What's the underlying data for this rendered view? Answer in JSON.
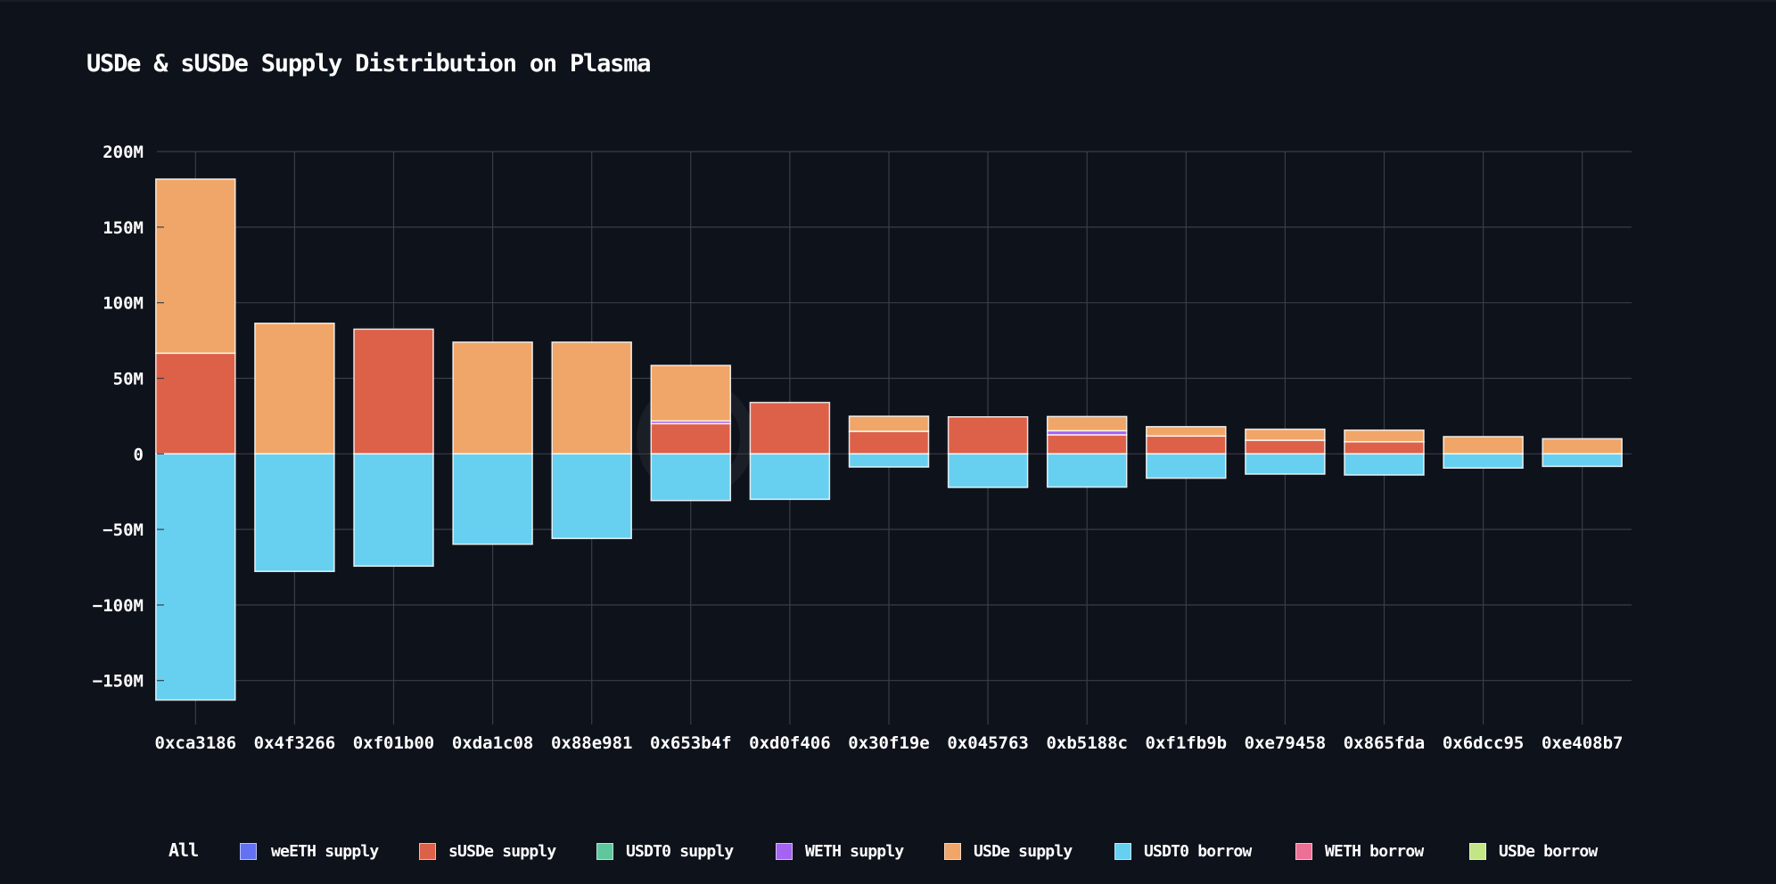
{
  "chart_data": {
    "type": "bar",
    "stacked": true,
    "title": "USDe & sUSDe Supply Distribution on Plasma",
    "xlabel": "",
    "ylabel": "",
    "ylim": [
      -170000000,
      200000000
    ],
    "yticks": [
      200000000,
      150000000,
      100000000,
      50000000,
      0,
      -50000000,
      -100000000,
      -150000000
    ],
    "ytick_labels": [
      "200M",
      "150M",
      "100M",
      "50M",
      "0",
      "−50M",
      "−100M",
      "−150M"
    ],
    "grid": true,
    "legend_position": "bottom",
    "categories": [
      "0xca3186",
      "0x4f3266",
      "0xf01b00",
      "0xda1c08",
      "0x88e981",
      "0x653b4f",
      "0xd0f406",
      "0x30f19e",
      "0x045763",
      "0xb5188c",
      "0xf1fb9b",
      "0xe79458",
      "0x865fda",
      "0x6dcc95",
      "0xe408b7"
    ],
    "series": [
      {
        "name": "weETH supply",
        "color": "#6372f4",
        "values": [
          0,
          0,
          0,
          0,
          0,
          0,
          0,
          0,
          0,
          0,
          0,
          0,
          0,
          0,
          0
        ]
      },
      {
        "name": "sUSDe supply",
        "color": "#dd6148",
        "values": [
          66600000,
          0,
          82500000,
          0,
          0,
          20000000,
          34000000,
          14900000,
          24500000,
          12600000,
          11800000,
          9000000,
          8000000,
          0,
          0
        ]
      },
      {
        "name": "USDT0 supply",
        "color": "#5ec79b",
        "values": [
          0,
          0,
          0,
          0,
          0,
          0,
          0,
          0,
          0,
          0,
          0,
          0,
          0,
          0,
          0
        ]
      },
      {
        "name": "WETH supply",
        "color": "#a463f2",
        "values": [
          0,
          0,
          0,
          0,
          0,
          1800000,
          0,
          0,
          0,
          2700000,
          0,
          0,
          0,
          0,
          0
        ]
      },
      {
        "name": "USDe supply",
        "color": "#f0a668",
        "values": [
          115200000,
          86400000,
          0,
          73900000,
          73900000,
          36700000,
          0,
          10000000,
          0,
          9400000,
          6200000,
          7300000,
          7700000,
          11400000,
          10000000
        ]
      },
      {
        "name": "USDT0 borrow",
        "color": "#67d0f0",
        "values": [
          -162900000,
          -77800000,
          -74300000,
          -59800000,
          -56000000,
          -30900000,
          -30100000,
          -8700000,
          -22200000,
          -22000000,
          -16100000,
          -13400000,
          -14000000,
          -9400000,
          -8300000
        ]
      },
      {
        "name": "WETH borrow",
        "color": "#ec7095",
        "values": [
          0,
          0,
          0,
          0,
          0,
          0,
          0,
          0,
          0,
          0,
          0,
          0,
          0,
          0,
          0
        ]
      },
      {
        "name": "USDe borrow",
        "color": "#c2e586",
        "values": [
          0,
          0,
          0,
          0,
          0,
          0,
          0,
          0,
          0,
          0,
          0,
          0,
          0,
          0,
          0
        ]
      }
    ]
  },
  "legend": {
    "all_label": "All"
  },
  "colors": {
    "background": "#0e121b",
    "grid": "#3a3d47",
    "text": "#ffffff"
  }
}
